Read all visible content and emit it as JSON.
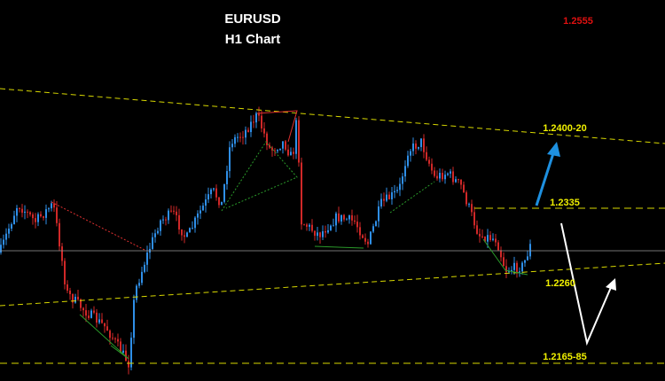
{
  "header": {
    "symbol": "EURUSD",
    "timeframe": "H1 Chart"
  },
  "current_price": "1.2555",
  "levels": [
    "1.2400-20",
    "1.2335",
    "1.2260",
    "1.2165-85"
  ]
}
